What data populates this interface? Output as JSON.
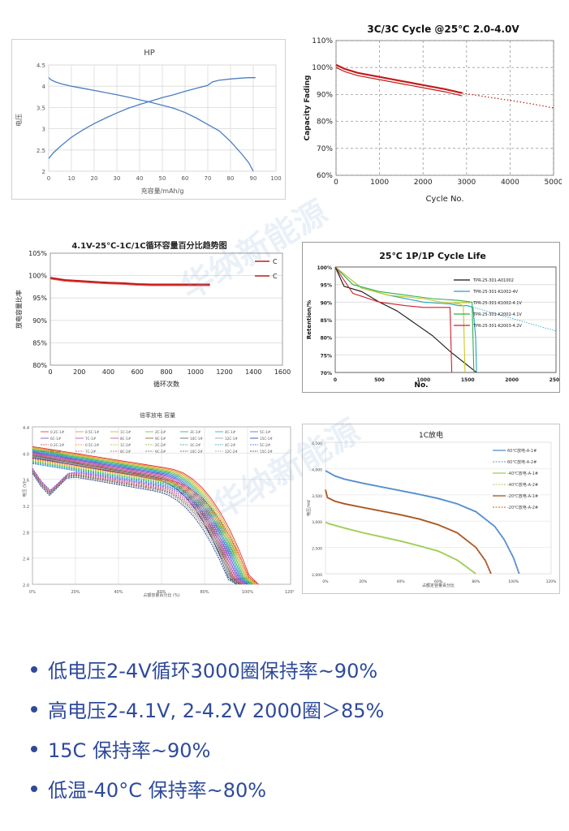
{
  "watermark": "华纳新能源",
  "chart_data": [
    {
      "type": "line",
      "title": "HP",
      "xlabel": "充容量/mAh/g",
      "ylabel": "电压",
      "xlim": [
        0,
        100
      ],
      "ylim": [
        2,
        4.5
      ],
      "xticks": [
        "0",
        "10",
        "20",
        "30",
        "40",
        "50",
        "60",
        "70",
        "80",
        "90",
        "100"
      ],
      "yticks": [
        "2",
        "2.5",
        "3",
        "3.5",
        "4",
        "4.5"
      ],
      "color": "#4a7ec2",
      "series": [
        {
          "x": [
            0,
            1,
            3,
            6,
            10,
            15,
            20,
            25,
            30,
            35,
            40,
            45,
            50,
            55,
            60,
            65,
            70,
            75,
            80,
            85,
            88,
            90
          ],
          "y": [
            4.2,
            4.15,
            4.1,
            4.05,
            4.0,
            3.95,
            3.9,
            3.85,
            3.8,
            3.74,
            3.68,
            3.62,
            3.55,
            3.48,
            3.38,
            3.25,
            3.1,
            2.95,
            2.7,
            2.4,
            2.2,
            2.0
          ]
        },
        {
          "x": [
            0,
            2,
            5,
            10,
            15,
            20,
            25,
            30,
            35,
            40,
            45,
            50,
            55,
            60,
            65,
            70,
            72,
            75,
            80,
            85,
            88,
            91
          ],
          "y": [
            2.3,
            2.43,
            2.58,
            2.8,
            2.97,
            3.12,
            3.25,
            3.37,
            3.48,
            3.57,
            3.65,
            3.73,
            3.8,
            3.88,
            3.95,
            4.02,
            4.1,
            4.14,
            4.17,
            4.19,
            4.2,
            4.2
          ]
        }
      ]
    },
    {
      "type": "line",
      "title": "3C/3C Cycle @25℃ 2.0-4.0V",
      "xlabel": "Cycle No.",
      "ylabel": "Capacity Fading",
      "xlim": [
        0,
        5000
      ],
      "ylim": [
        60,
        110
      ],
      "xticks": [
        "0",
        "1000",
        "2000",
        "3000",
        "4000",
        "5000"
      ],
      "yticks": [
        "60%",
        "70%",
        "80%",
        "90%",
        "100%",
        "110%"
      ],
      "series": [
        {
          "style": "measured",
          "color": "#c41a1a",
          "x": [
            0,
            200,
            500,
            1000,
            1500,
            2000,
            2500,
            2900
          ],
          "y": [
            101,
            99.5,
            98,
            96.5,
            95,
            93.5,
            92,
            90.5
          ]
        },
        {
          "style": "extrapolated-dotted",
          "color": "#c41a1a",
          "x": [
            2900,
            3500,
            4000,
            4500,
            5000
          ],
          "y": [
            90.5,
            89,
            87.8,
            86.5,
            85
          ]
        }
      ]
    },
    {
      "type": "line",
      "title": "4.1V-25℃-1C/1C循环容量百分比趋势图",
      "xlabel": "循环次数",
      "ylabel": "放电容量比率",
      "xlim": [
        0,
        1600
      ],
      "ylim": [
        80,
        105
      ],
      "xticks": [
        "0",
        "200",
        "400",
        "600",
        "800",
        "1000",
        "1200",
        "1400",
        "1600"
      ],
      "yticks": [
        "80%",
        "85%",
        "90%",
        "95%",
        "100%",
        "105%"
      ],
      "legend": [
        "C",
        "C"
      ],
      "series": [
        {
          "name": "C",
          "color": "#c41a1a",
          "x": [
            0,
            100,
            200,
            300,
            400,
            500,
            600,
            700,
            800,
            900,
            1000,
            1100
          ],
          "y": [
            99.5,
            99.0,
            98.8,
            98.6,
            98.4,
            98.3,
            98.1,
            98.0,
            98.0,
            98.0,
            98.0,
            98.0
          ]
        }
      ]
    },
    {
      "type": "line",
      "title": "25℃ 1P/1P Cycle Life",
      "xlabel": "No.",
      "ylabel": "Retention/%",
      "xlim": [
        0,
        2500
      ],
      "ylim": [
        70,
        100
      ],
      "xticks": [
        "0",
        "500",
        "1000",
        "1500",
        "2000",
        "2500"
      ],
      "yticks": [
        "70%",
        "75%",
        "80%",
        "85%",
        "90%",
        "95%",
        "100%"
      ],
      "series": [
        {
          "name": "TPR-25-301-A01002",
          "color": "#111111",
          "x": [
            0,
            100,
            300,
            500,
            700,
            900,
            1100,
            1300,
            1500,
            1600
          ],
          "y": [
            100,
            94.5,
            93,
            90,
            87.5,
            84,
            80.5,
            76,
            72,
            70
          ]
        },
        {
          "name": "TPR-25-301-K1002-4V",
          "color": "#22a0c8",
          "x": [
            0,
            300,
            600,
            1000,
            1300,
            1400,
            1500,
            1560,
            1590,
            1600
          ],
          "y": [
            100,
            94,
            92,
            90,
            89.5,
            89,
            89,
            88.5,
            80,
            70
          ]
        },
        {
          "name": "TPR-25-301-K1002-4.1V",
          "color": "#c8c81e",
          "x": [
            0,
            300,
            600,
            1000,
            1200,
            1400,
            1450,
            1470
          ],
          "y": [
            100,
            94,
            92,
            91,
            90,
            89.5,
            89,
            70
          ]
        },
        {
          "name": "TPR-25-301-K2002-4.1V",
          "color": "#2db04a",
          "x": [
            0,
            200,
            500,
            800,
            1100,
            1400,
            1550,
            1570
          ],
          "y": [
            100,
            95,
            93,
            92,
            91,
            90.5,
            90,
            70
          ]
        },
        {
          "name": "TPR-25-301-K2003-4.2V",
          "color": "#d01e2a",
          "x": [
            0,
            200,
            500,
            800,
            1000,
            1200,
            1300,
            1320
          ],
          "y": [
            100,
            92.5,
            90,
            89,
            88.5,
            88.5,
            88.5,
            70
          ]
        }
      ]
    },
    {
      "type": "line",
      "title": "倍率放电 容量",
      "xlabel": "占额容量百分比 (%)",
      "ylabel": "电压 (V)",
      "xlim": [
        0,
        120
      ],
      "ylim": [
        2.0,
        4.4
      ],
      "xticks": [
        "0%",
        "20%",
        "40%",
        "60%",
        "80%",
        "100%",
        "120%"
      ],
      "yticks": [
        "2.0",
        "2.4",
        "2.8",
        "3.2",
        "3.6",
        "4.0",
        "4.4"
      ],
      "legend": [
        "0.2C-1#",
        "0.5C-1#",
        "1C-1#",
        "2C-1#",
        "3C-1#",
        "4C-1#",
        "5C-1#",
        "6C-1#",
        "7C-1#",
        "8C-1#",
        "9C-1#",
        "10C-1#",
        "12C-1#",
        "15C-1#",
        "0.2C-2#",
        "0.5C-2#",
        "1C-2#",
        "2C-2#",
        "3C-2#",
        "4C-2#",
        "5C-2#",
        "6C-2#",
        "7C-2#",
        "8C-2#",
        "9C-2#",
        "10C-2#",
        "12C-2#",
        "15C-2#"
      ],
      "series_color_cycle": [
        "#e0302a",
        "#e88a2a",
        "#c8b820",
        "#6cbf3a",
        "#2aa86a",
        "#22a0c8",
        "#3a6ad0",
        "#6a4ac8",
        "#b04ab8",
        "#d04a88",
        "#8a5a3a",
        "#555555",
        "#9a9a9a",
        "#1a3a8a"
      ],
      "series_summary": {
        "start_range": [
          3.75,
          4.1
        ],
        "end_range": [
          95,
          105
        ]
      }
    },
    {
      "type": "line",
      "title": "1C放电",
      "xlabel": "占额定容量百分比",
      "ylabel": "电压/mV",
      "xlim": [
        0,
        120
      ],
      "ylim": [
        2000,
        4500
      ],
      "xticks": [
        "0%",
        "20%",
        "40%",
        "60%",
        "80%",
        "100%",
        "120%"
      ],
      "yticks": [
        "2,000",
        "2,500",
        "3,000",
        "3,500",
        "4,000",
        "4,500"
      ],
      "series": [
        {
          "name": "60℃放电-A-1#",
          "color": "#4a86c8",
          "x": [
            0,
            5,
            10,
            20,
            30,
            40,
            50,
            60,
            70,
            80,
            90,
            95,
            100,
            103
          ],
          "y": [
            3960,
            3860,
            3800,
            3720,
            3650,
            3580,
            3510,
            3430,
            3330,
            3180,
            2900,
            2650,
            2300,
            2000
          ]
        },
        {
          "name": "60℃放电-A-2#",
          "color": "#7aa8d8",
          "x": [
            0,
            5,
            10,
            20,
            30,
            40,
            50,
            60,
            70,
            80,
            90,
            95,
            100,
            103
          ],
          "y": [
            3950,
            3850,
            3790,
            3710,
            3640,
            3570,
            3500,
            3420,
            3320,
            3170,
            2890,
            2640,
            2290,
            2000
          ]
        },
        {
          "name": "-40℃放电-A-1#",
          "color": "#9acb4a",
          "x": [
            0,
            2,
            10,
            20,
            30,
            40,
            50,
            60,
            70,
            75,
            78,
            80
          ],
          "y": [
            2980,
            2950,
            2870,
            2780,
            2700,
            2620,
            2530,
            2430,
            2260,
            2130,
            2050,
            2000
          ]
        },
        {
          "name": "-40℃放电-A-2#",
          "color": "#b8d878",
          "x": [
            0,
            2,
            10,
            20,
            30,
            40,
            50,
            60,
            70,
            75,
            78,
            80
          ],
          "y": [
            2970,
            2940,
            2860,
            2770,
            2690,
            2610,
            2520,
            2420,
            2250,
            2120,
            2040,
            2000
          ]
        },
        {
          "name": "-20℃放电-A-1#",
          "color": "#a04a1a",
          "x": [
            0,
            1,
            5,
            10,
            20,
            30,
            40,
            50,
            60,
            70,
            80,
            85,
            88
          ],
          "y": [
            3600,
            3450,
            3380,
            3330,
            3260,
            3190,
            3120,
            3040,
            2930,
            2780,
            2500,
            2250,
            2000
          ]
        },
        {
          "name": "-20℃放电-A-2#",
          "color": "#d08040",
          "x": [
            0,
            1,
            5,
            10,
            20,
            30,
            40,
            50,
            60,
            70,
            80,
            85,
            88
          ],
          "y": [
            3590,
            3440,
            3370,
            3320,
            3250,
            3180,
            3110,
            3030,
            2920,
            2770,
            2490,
            2240,
            2000
          ]
        }
      ]
    }
  ],
  "bullets": [
    "低电压2-4V循环3000圈保持率~90%",
    "高电压2-4.1V, 2-4.2V 2000圈＞85%",
    "15C 保持率~90%",
    "低温-40°C 保持率~80%"
  ]
}
